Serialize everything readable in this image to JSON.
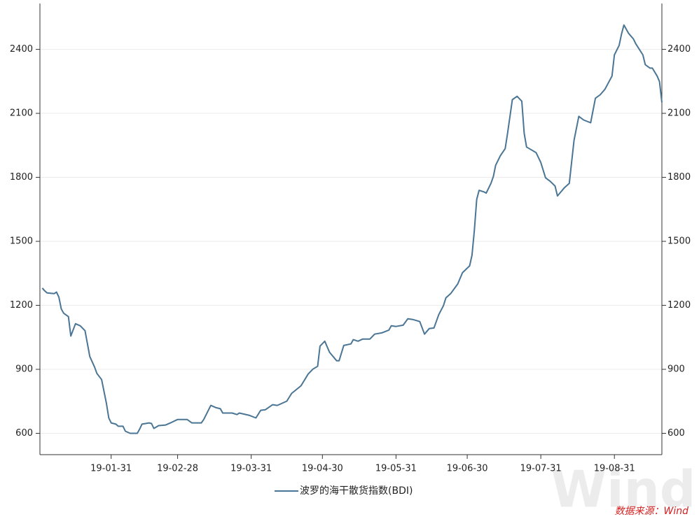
{
  "chart_data": {
    "type": "line",
    "x": [
      "19-01-02",
      "19-01-03",
      "19-01-04",
      "19-01-07",
      "19-01-08",
      "19-01-09",
      "19-01-10",
      "19-01-11",
      "19-01-13",
      "19-01-14",
      "19-01-16",
      "19-01-18",
      "19-01-20",
      "19-01-22",
      "19-01-24",
      "19-01-25",
      "19-01-27",
      "19-01-29",
      "19-01-30",
      "19-01-31",
      "19-02-02",
      "19-02-03",
      "19-02-05",
      "19-02-06",
      "19-02-08",
      "19-02-11",
      "19-02-12",
      "19-02-13",
      "19-02-16",
      "19-02-17",
      "19-02-18",
      "19-02-20",
      "19-02-23",
      "19-02-25",
      "19-02-28",
      "19-03-02",
      "19-03-04",
      "19-03-06",
      "19-03-10",
      "19-03-11",
      "19-03-14",
      "19-03-16",
      "19-03-18",
      "19-03-19",
      "19-03-23",
      "19-03-25",
      "19-03-26",
      "19-03-30",
      "19-04-02",
      "19-04-04",
      "19-04-06",
      "19-04-09",
      "19-04-11",
      "19-04-15",
      "19-04-17",
      "19-04-21",
      "19-04-24",
      "19-04-26",
      "19-04-28",
      "19-04-29",
      "19-05-01",
      "19-05-03",
      "19-05-06",
      "19-05-07",
      "19-05-09",
      "19-05-12",
      "19-05-13",
      "19-05-15",
      "19-05-17",
      "19-05-20",
      "19-05-22",
      "19-05-25",
      "19-05-28",
      "19-05-29",
      "19-05-31",
      "19-06-03",
      "19-06-05",
      "19-06-07",
      "19-06-10",
      "19-06-12",
      "19-06-14",
      "19-06-16",
      "19-06-18",
      "19-06-20",
      "19-06-21",
      "19-06-23",
      "19-06-26",
      "19-06-28",
      "19-07-01",
      "19-07-02",
      "19-07-03",
      "19-07-04",
      "19-07-05",
      "19-07-07",
      "19-07-08",
      "19-07-10",
      "19-07-11",
      "19-07-12",
      "19-07-14",
      "19-07-16",
      "19-07-17",
      "19-07-19",
      "19-07-21",
      "19-07-23",
      "19-07-24",
      "19-07-25",
      "19-07-27",
      "19-07-29",
      "19-07-31",
      "19-08-02",
      "19-08-04",
      "19-08-06",
      "19-08-07",
      "19-08-08",
      "19-08-10",
      "19-08-12",
      "19-08-14",
      "19-08-16",
      "19-08-18",
      "19-08-21",
      "19-08-23",
      "19-08-25",
      "19-08-27",
      "19-08-30",
      "19-08-31",
      "19-09-02",
      "19-09-03",
      "19-09-04",
      "19-09-06",
      "19-09-08",
      "19-09-09",
      "19-09-12",
      "19-09-13",
      "19-09-15",
      "19-09-16",
      "19-09-18",
      "19-09-19",
      "19-09-20"
    ],
    "series": [
      {
        "name": "波罗的海干散货指数(BDI)",
        "color": "#4a7594",
        "values": [
          1281,
          1268,
          1258,
          1255,
          1262,
          1238,
          1183,
          1163,
          1147,
          1056,
          1114,
          1104,
          1081,
          960,
          911,
          881,
          852,
          741,
          672,
          649,
          643,
          633,
          633,
          610,
          600,
          600,
          620,
          643,
          649,
          646,
          623,
          636,
          639,
          649,
          665,
          665,
          665,
          649,
          649,
          665,
          731,
          721,
          715,
          695,
          695,
          688,
          695,
          685,
          672,
          708,
          711,
          734,
          731,
          751,
          787,
          823,
          878,
          901,
          914,
          1009,
          1032,
          980,
          940,
          940,
          1012,
          1019,
          1039,
          1032,
          1042,
          1042,
          1065,
          1071,
          1084,
          1104,
          1101,
          1107,
          1137,
          1134,
          1124,
          1065,
          1091,
          1094,
          1156,
          1199,
          1235,
          1255,
          1300,
          1353,
          1385,
          1435,
          1549,
          1696,
          1739,
          1732,
          1726,
          1772,
          1804,
          1857,
          1902,
          1935,
          2007,
          2164,
          2180,
          2157,
          2007,
          1942,
          1929,
          1916,
          1870,
          1798,
          1781,
          1759,
          1713,
          1726,
          1752,
          1772,
          1974,
          2086,
          2069,
          2056,
          2171,
          2187,
          2213,
          2275,
          2374,
          2419,
          2472,
          2514,
          2475,
          2449,
          2426,
          2374,
          2328,
          2312,
          2312,
          2275,
          2249,
          2151
        ]
      }
    ],
    "xlim": [
      "19-01-01",
      "19-09-20"
    ],
    "xticks": [
      "19-01-31",
      "19-02-28",
      "19-03-31",
      "19-04-30",
      "19-05-31",
      "19-06-30",
      "19-07-31",
      "19-08-31"
    ],
    "ylim": [
      500,
      2615
    ],
    "yticks": [
      600,
      900,
      1200,
      1500,
      1800,
      2100,
      2400
    ],
    "y2lim": [
      500,
      2615
    ],
    "y2ticks": [
      600,
      900,
      1200,
      1500,
      1800,
      2100,
      2400
    ],
    "grid": true,
    "legend": "bottom",
    "watermark": "Wind",
    "source": "数据来源：Wind"
  }
}
